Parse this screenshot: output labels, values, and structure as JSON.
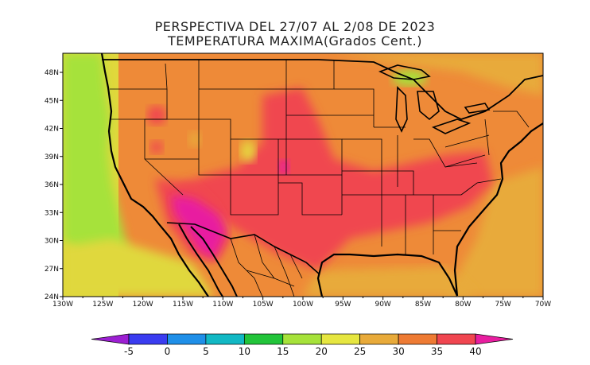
{
  "title_line1": "PERSPECTIVA DEL 27/07 AL 2/08 DE 2023",
  "title_line2": "TEMPERATURA MAXIMA(Grados Cent.)",
  "map": {
    "lon_ticks": [
      "130W",
      "125W",
      "120W",
      "115W",
      "110W",
      "105W",
      "100W",
      "95W",
      "90W",
      "85W",
      "80W",
      "75W",
      "70W"
    ],
    "lat_ticks": [
      "48N",
      "45N",
      "42N",
      "39N",
      "36N",
      "33N",
      "30N",
      "27N",
      "24N"
    ]
  },
  "colorbar": {
    "levels": [
      "-5",
      "0",
      "5",
      "10",
      "15",
      "20",
      "25",
      "30",
      "35",
      "40"
    ],
    "colors": [
      "#9c1fd2",
      "#3a3cf0",
      "#1f8fe8",
      "#12b8c4",
      "#22c43a",
      "#a6e23a",
      "#e6e640",
      "#e8aa3a",
      "#ee7b34",
      "#f04650",
      "#e81ea0"
    ]
  },
  "palette": {
    "ocean_pacific_near": "#a6e23a",
    "ocean_pacific_far": "#e0d83c",
    "base_land": "#ee8a38",
    "hot": "#f04650",
    "very_hot": "#e81ea0",
    "warm": "#e8aa3a",
    "mild": "#e6d440"
  }
}
